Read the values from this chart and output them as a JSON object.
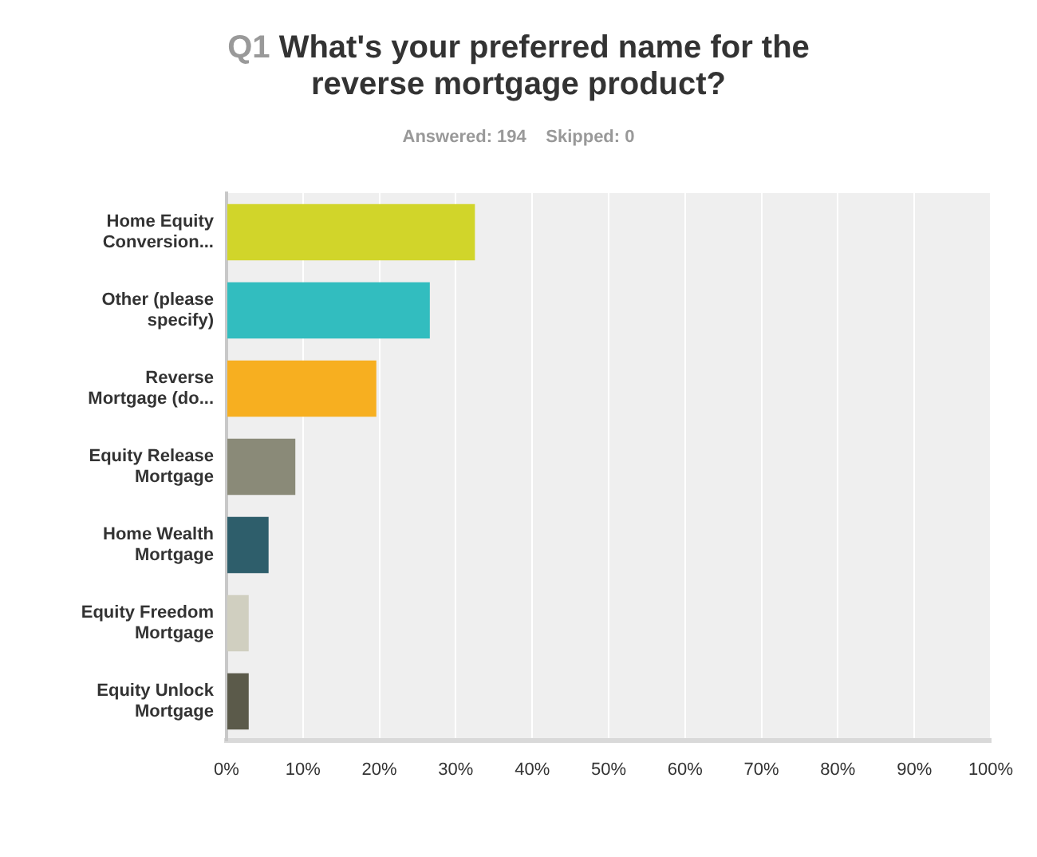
{
  "chart_data": {
    "type": "bar",
    "orientation": "horizontal",
    "title": "Q1 What's your preferred name for the reverse mortgage product?",
    "subtitle": "Answered: 194    Skipped: 0",
    "categories": [
      "Home Equity Conversion...",
      "Other (please specify)",
      "Reverse Mortgage (do...",
      "Equity Release Mortgage",
      "Home Wealth Mortgage",
      "Equity Freedom Mortgage",
      "Equity Unlock Mortgage"
    ],
    "values": [
      32.5,
      26.6,
      19.6,
      9.0,
      5.5,
      2.9,
      2.9
    ],
    "colors": [
      "#d1d52a",
      "#32bdbf",
      "#f7af20",
      "#8a8a78",
      "#2e5e6b",
      "#d0cfc0",
      "#5b5a4a"
    ],
    "xlim": [
      0,
      100
    ],
    "xticks": [
      {
        "value": 0,
        "label": "0%"
      },
      {
        "value": 10,
        "label": "10%"
      },
      {
        "value": 20,
        "label": "20%"
      },
      {
        "value": 30,
        "label": "30%"
      },
      {
        "value": 40,
        "label": "40%"
      },
      {
        "value": 50,
        "label": "50%"
      },
      {
        "value": 60,
        "label": "60%"
      },
      {
        "value": 70,
        "label": "70%"
      },
      {
        "value": 80,
        "label": "80%"
      },
      {
        "value": 90,
        "label": "90%"
      },
      {
        "value": 100,
        "label": "100%"
      }
    ],
    "grid": "x",
    "legend": false
  }
}
